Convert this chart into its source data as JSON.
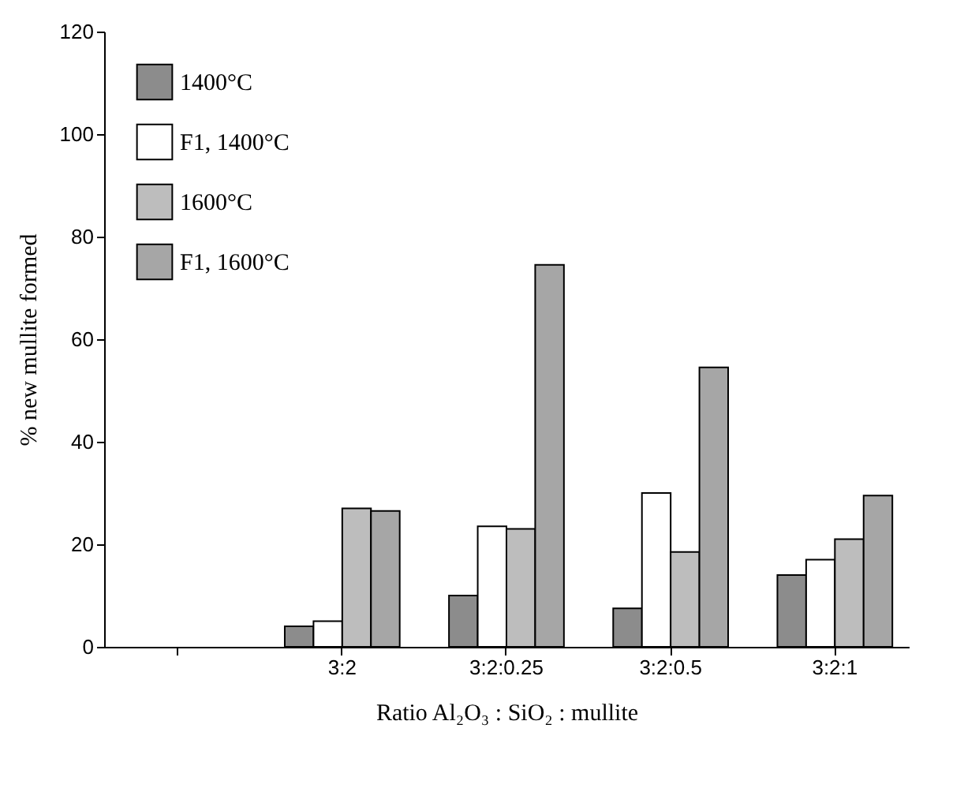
{
  "chart_data": {
    "type": "bar",
    "xlabel": "Ratio Al₂O₃ : SiO₂ : mullite",
    "ylabel": "% new mullite formed",
    "categories": [
      null,
      "3:2",
      "3:2:0.25",
      "3:2:0.5",
      "3:2:1"
    ],
    "series": [
      {
        "name": "1400°C",
        "color": "#8c8c8c",
        "values": [
          null,
          4,
          10,
          7.5,
          14
        ]
      },
      {
        "name": "F1, 1400°C",
        "color": "#ffffff",
        "values": [
          null,
          5,
          23.5,
          30,
          17
        ]
      },
      {
        "name": "1600°C",
        "color": "#bdbdbd",
        "values": [
          null,
          27,
          23,
          18.5,
          21
        ]
      },
      {
        "name": "F1, 1600°C",
        "color": "#a6a6a6",
        "values": [
          null,
          26.5,
          74.5,
          54.5,
          29.5
        ]
      }
    ],
    "ylim": [
      0,
      120
    ],
    "yticks": [
      0,
      20,
      40,
      60,
      80,
      100,
      120
    ],
    "grid": false,
    "legend": "top left"
  }
}
